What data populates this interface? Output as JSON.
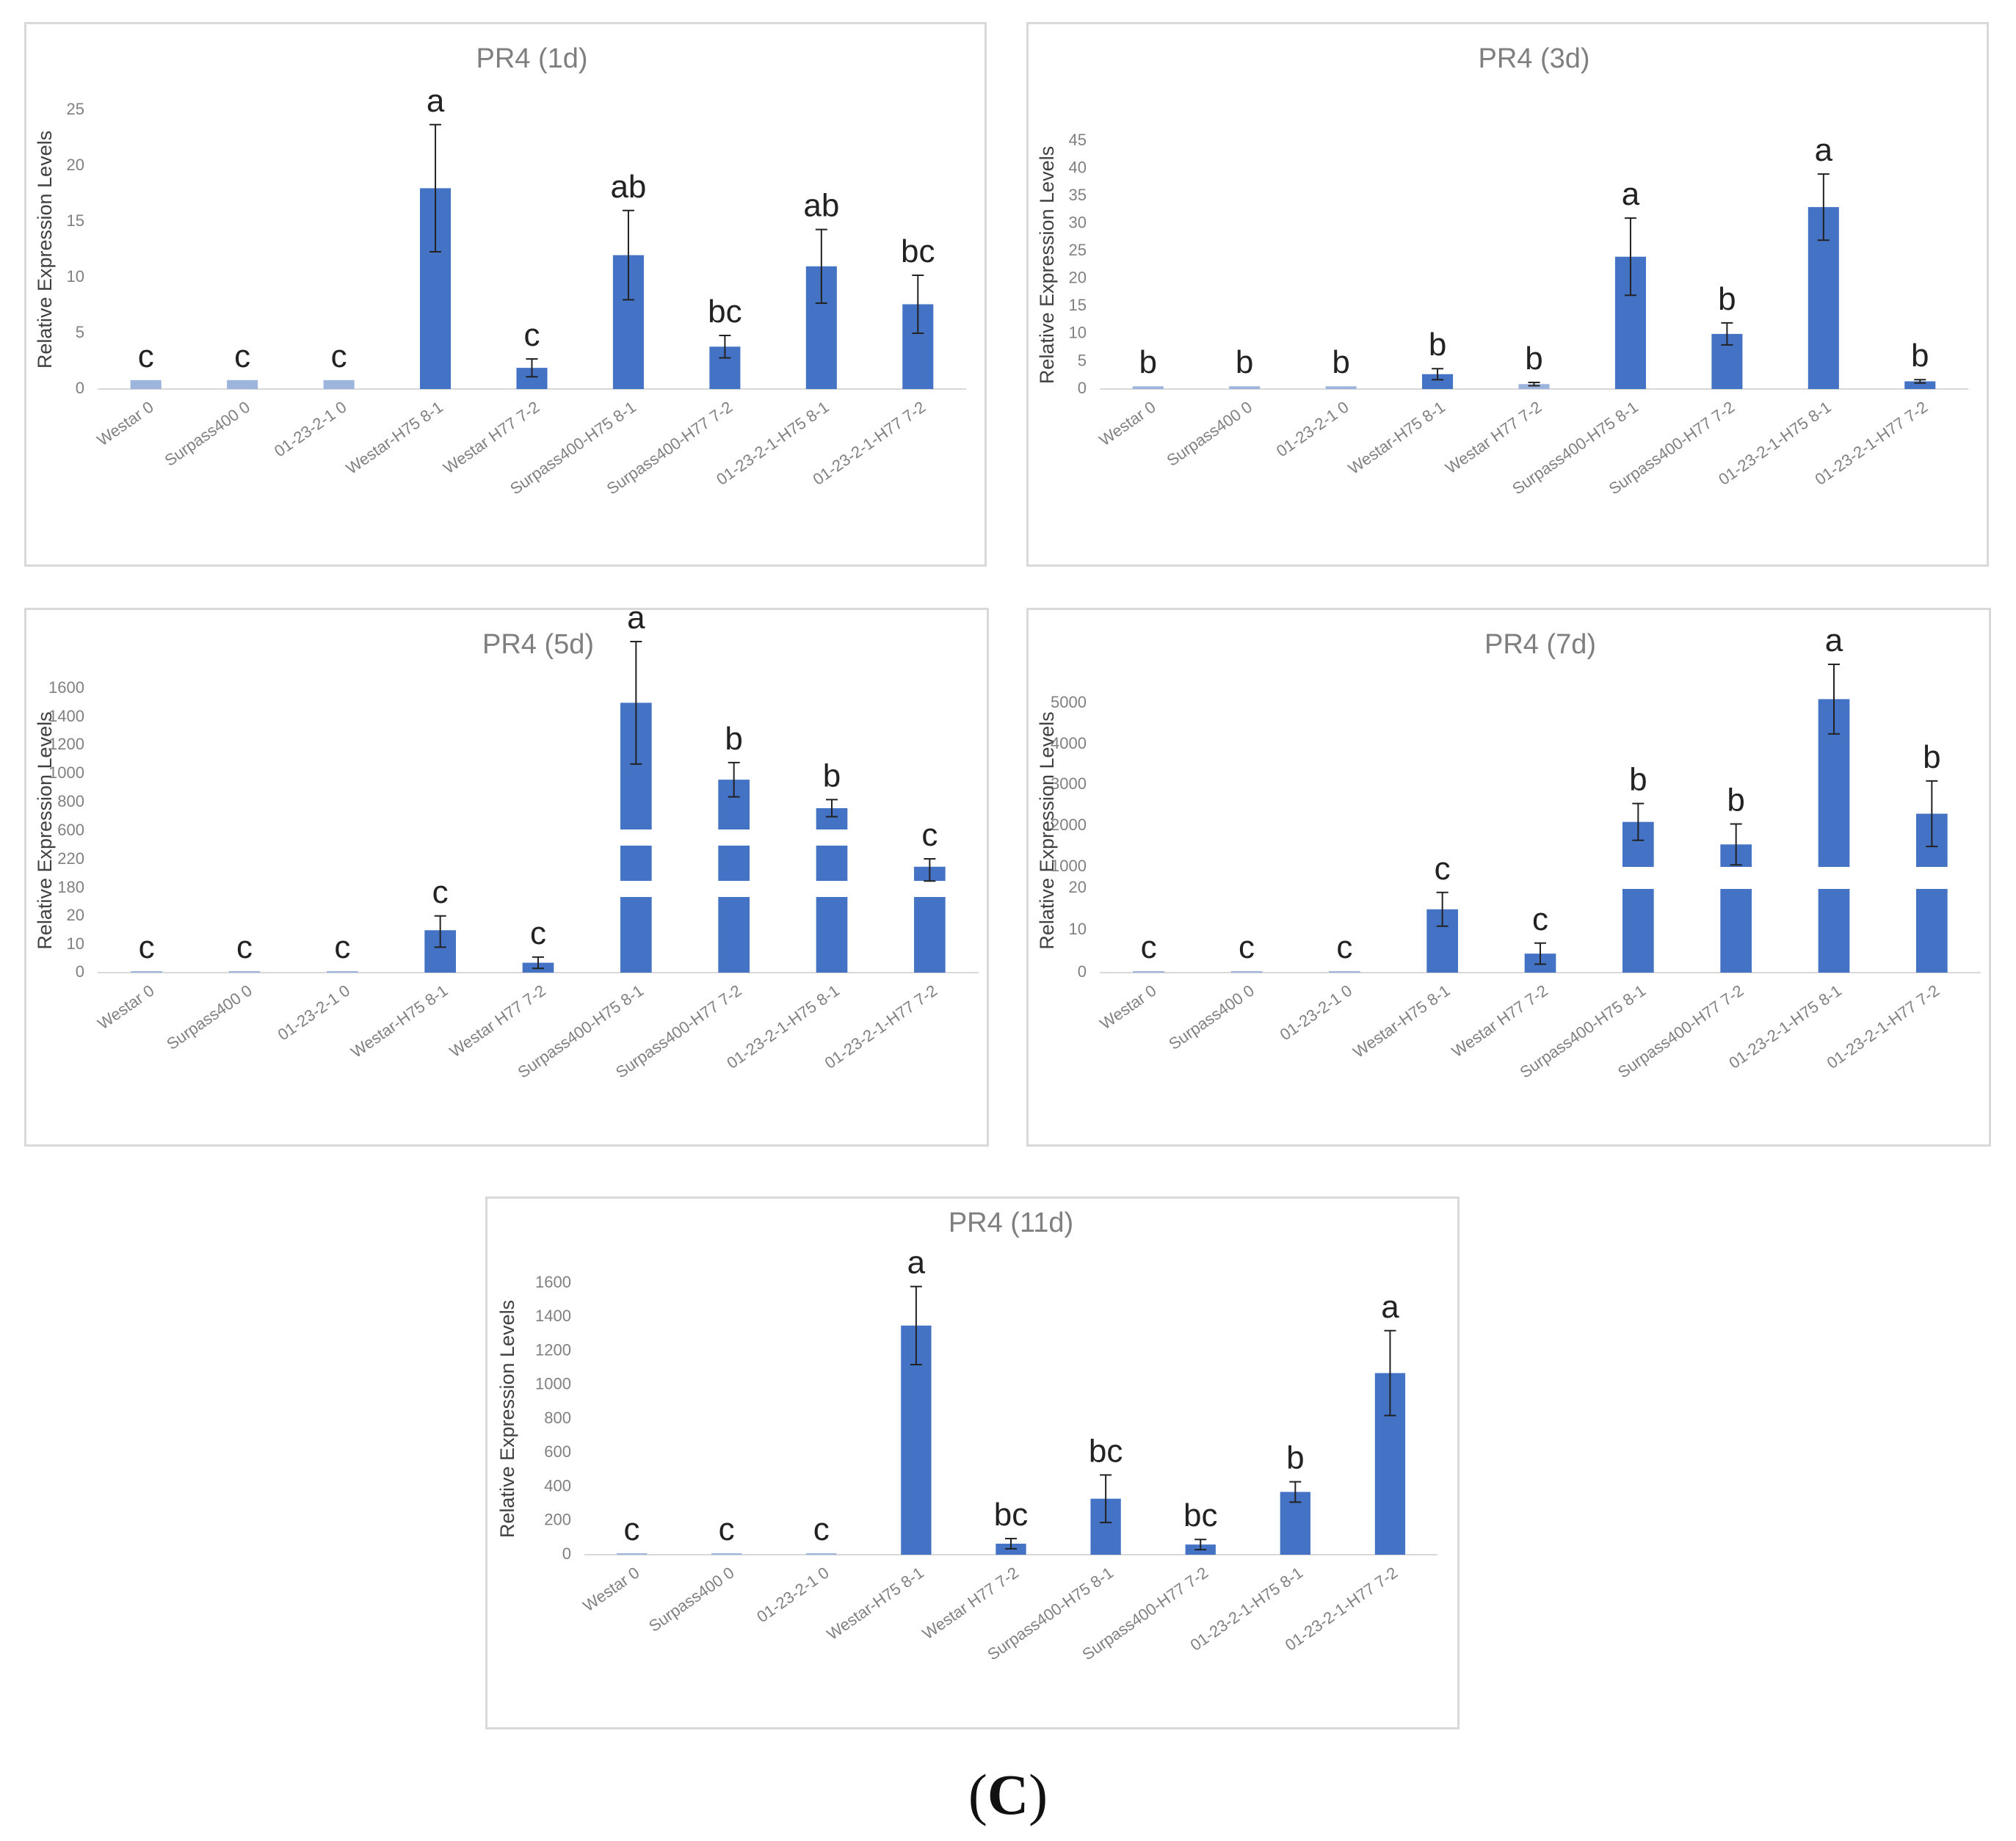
{
  "figure_label": {
    "open": "(",
    "letter": "C",
    "close": ")"
  },
  "colors": {
    "bar": "#4472c4",
    "title": "#7f7f7f",
    "frame": "#d9d9d9"
  },
  "chart_data": [
    {
      "id": "pr4-1d",
      "type": "bar",
      "title": "PR4 (1d)",
      "xlabel": "",
      "ylabel": "Relative Expression Levels",
      "categories": [
        "Westar 0",
        "Surpass400 0",
        "01-23-2-1 0",
        "Westar-H75 8-1",
        "Westar H77 7-2",
        "Surpass400-H75 8-1",
        "Surpass400-H77 7-2",
        "01-23-2-1-H75 8-1",
        "01-23-2-1-H77 7-2"
      ],
      "values": [
        0.8,
        0.8,
        0.8,
        18,
        1.9,
        12,
        3.8,
        11,
        7.6
      ],
      "errors": [
        0,
        0,
        0,
        5.7,
        0.8,
        4.0,
        1.0,
        3.3,
        2.6
      ],
      "significance": [
        "c",
        "c",
        "c",
        "a",
        "c",
        "ab",
        "bc",
        "ab",
        "bc"
      ],
      "ylim": [
        0,
        25
      ],
      "yticks": [
        "0",
        "5",
        "10",
        "15",
        "20",
        "25"
      ]
    },
    {
      "id": "pr4-3d",
      "type": "bar",
      "title": "PR4 (3d)",
      "xlabel": "",
      "ylabel": "Relative Expression Levels",
      "categories": [
        "Westar 0",
        "Surpass400 0",
        "01-23-2-1 0",
        "Westar-H75 8-1",
        "Westar H77 7-2",
        "Surpass400-H75 8-1",
        "Surpass400-H77 7-2",
        "01-23-2-1-H75 8-1",
        "01-23-2-1-H77 7-2"
      ],
      "values": [
        0.5,
        0.5,
        0.5,
        2.7,
        0.9,
        24,
        10,
        33,
        1.4
      ],
      "errors": [
        0,
        0,
        0,
        1.0,
        0.3,
        7.0,
        2.0,
        6.0,
        0.3
      ],
      "significance": [
        "b",
        "b",
        "b",
        "b",
        "b",
        "a",
        "b",
        "a",
        "b"
      ],
      "ylim": [
        0,
        45
      ],
      "yticks": [
        "0",
        "5",
        "10",
        "15",
        "20",
        "25",
        "30",
        "35",
        "40",
        "45"
      ]
    },
    {
      "id": "pr4-5d",
      "type": "bar",
      "title": "PR4 (5d)",
      "xlabel": "",
      "ylabel": "Relative Expression Levels",
      "axis_break": true,
      "categories": [
        "Westar 0",
        "Surpass400 0",
        "01-23-2-1 0",
        "Westar-H75 8-1",
        "Westar H77 7-2",
        "Surpass400-H75 8-1",
        "Surpass400-H77 7-2",
        "01-23-2-1-H75 8-1",
        "01-23-2-1-H77 7-2"
      ],
      "values": [
        0.3,
        0.3,
        0.3,
        15,
        3.5,
        1500,
        960,
        760,
        210
      ],
      "errors": [
        0,
        0,
        0,
        6,
        2,
        430,
        120,
        60,
        20
      ],
      "significance": [
        "c",
        "c",
        "c",
        "c",
        "c",
        "a",
        "b",
        "b",
        "c"
      ],
      "yticks": [
        "0",
        "10",
        "20",
        "180",
        "220",
        "600",
        "800",
        "1000",
        "1200",
        "1400",
        "1600"
      ]
    },
    {
      "id": "pr4-7d",
      "type": "bar",
      "title": "PR4 (7d)",
      "xlabel": "",
      "ylabel": "Relative Expression Levels",
      "axis_break": true,
      "categories": [
        "Westar 0",
        "Surpass400 0",
        "01-23-2-1 0",
        "Westar-H75 8-1",
        "Westar H77 7-2",
        "Surpass400-H75 8-1",
        "Surpass400-H77 7-2",
        "01-23-2-1-H75 8-1",
        "01-23-2-1-H77 7-2"
      ],
      "values": [
        0.3,
        0.3,
        0.3,
        15,
        4.5,
        2100,
        1550,
        5100,
        2300
      ],
      "errors": [
        0,
        0,
        0,
        4,
        2.5,
        450,
        500,
        850,
        800
      ],
      "significance": [
        "c",
        "c",
        "c",
        "c",
        "c",
        "b",
        "b",
        "a",
        "b"
      ],
      "yticks": [
        "0",
        "10",
        "20",
        "1000",
        "2000",
        "3000",
        "4000",
        "5000"
      ]
    },
    {
      "id": "pr4-11d",
      "type": "bar",
      "title": "PR4 (11d)",
      "xlabel": "",
      "ylabel": "Relative Expression Levels",
      "categories": [
        "Westar 0",
        "Surpass400 0",
        "01-23-2-1 0",
        "Westar-H75 8-1",
        "Westar H77 7-2",
        "Surpass400-H75 8-1",
        "Surpass400-H77 7-2",
        "01-23-2-1-H75 8-1",
        "01-23-2-1-H77 7-2"
      ],
      "values": [
        0.5,
        0.5,
        0.5,
        1350,
        65,
        330,
        60,
        370,
        1070
      ],
      "errors": [
        0,
        0,
        0,
        230,
        30,
        140,
        30,
        60,
        250
      ],
      "significance": [
        "c",
        "c",
        "c",
        "a",
        "bc",
        "bc",
        "bc",
        "b",
        "a"
      ],
      "ylim": [
        0,
        1600
      ],
      "yticks": [
        "0",
        "200",
        "400",
        "600",
        "800",
        "1000",
        "1200",
        "1400",
        "1600"
      ]
    }
  ]
}
